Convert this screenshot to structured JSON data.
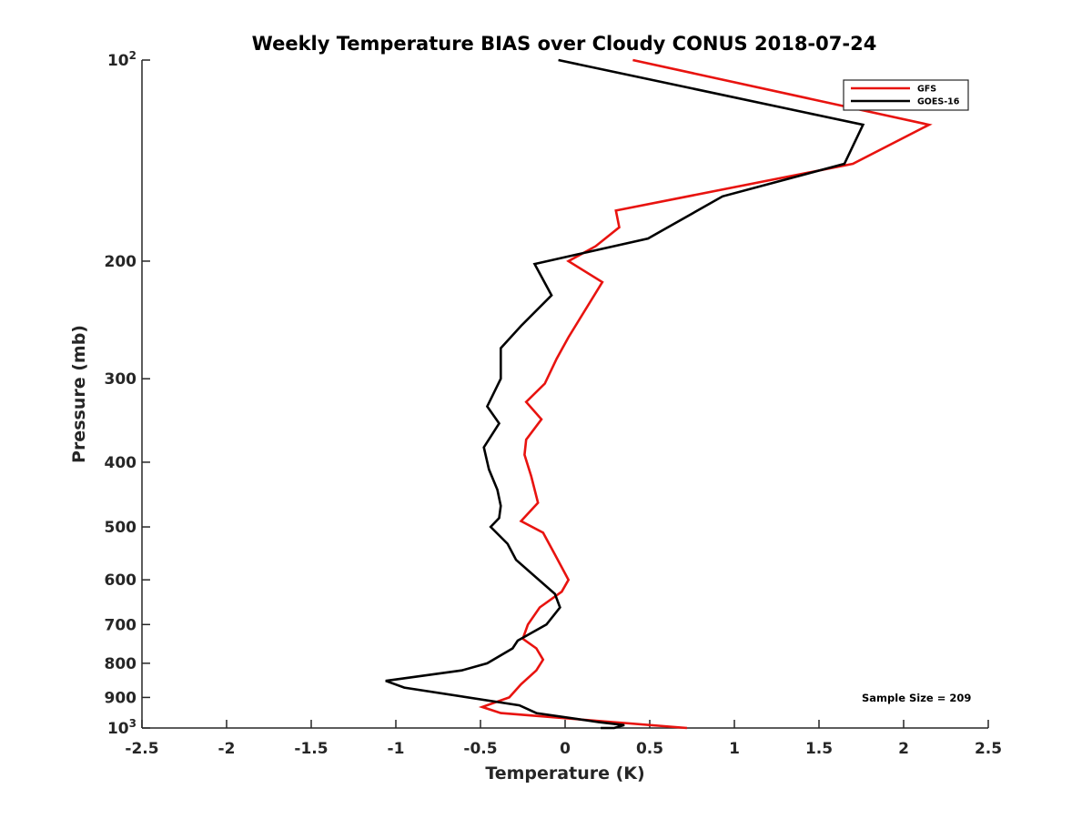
{
  "chart_data": {
    "type": "line",
    "title": "Weekly Temperature BIAS over Cloudy CONUS 2018-07-24",
    "xlabel": "Temperature (K)",
    "ylabel": "Pressure (mb)",
    "xlim": [
      -2.5,
      2.5
    ],
    "ylim": [
      100,
      1000
    ],
    "y_scale": "log",
    "y_reversed": true,
    "grid": false,
    "legend_position": "top-right",
    "x_ticks": [
      -2.5,
      -2,
      -1.5,
      -1,
      -0.5,
      0,
      0.5,
      1,
      1.5,
      2,
      2.5
    ],
    "x_tick_labels": [
      "-2.5",
      "-2",
      "-1.5",
      "-1",
      "-0.5",
      "0",
      "0.5",
      "1",
      "1.5",
      "2",
      "2.5"
    ],
    "y_ticks": [
      {
        "value": 100,
        "base": "10",
        "exp": "2"
      },
      {
        "value": 200,
        "label": "200"
      },
      {
        "value": 300,
        "label": "300"
      },
      {
        "value": 400,
        "label": "400"
      },
      {
        "value": 500,
        "label": "500"
      },
      {
        "value": 600,
        "label": "600"
      },
      {
        "value": 700,
        "label": "700"
      },
      {
        "value": 800,
        "label": "800"
      },
      {
        "value": 900,
        "label": "900"
      },
      {
        "value": 1000,
        "base": "10",
        "exp": "3"
      }
    ],
    "annotation": "Sample Size = 209",
    "series": [
      {
        "name": "GFS",
        "color": "#e8130f",
        "points": [
          [
            0.4,
            100
          ],
          [
            2.15,
            125
          ],
          [
            1.7,
            143
          ],
          [
            0.3,
            168
          ],
          [
            0.32,
            178
          ],
          [
            0.18,
            190
          ],
          [
            0.02,
            200
          ],
          [
            0.22,
            215
          ],
          [
            0.02,
            260
          ],
          [
            -0.05,
            280
          ],
          [
            -0.12,
            305
          ],
          [
            -0.23,
            325
          ],
          [
            -0.14,
            345
          ],
          [
            -0.23,
            370
          ],
          [
            -0.24,
            390
          ],
          [
            -0.2,
            420
          ],
          [
            -0.16,
            460
          ],
          [
            -0.26,
            490
          ],
          [
            -0.13,
            510
          ],
          [
            -0.06,
            550
          ],
          [
            0.02,
            600
          ],
          [
            -0.02,
            625
          ],
          [
            -0.15,
            660
          ],
          [
            -0.22,
            700
          ],
          [
            -0.25,
            735
          ],
          [
            -0.17,
            760
          ],
          [
            -0.13,
            790
          ],
          [
            -0.17,
            820
          ],
          [
            -0.26,
            860
          ],
          [
            -0.33,
            900
          ],
          [
            -0.49,
            930
          ],
          [
            -0.38,
            950
          ],
          [
            0.72,
            1000
          ]
        ]
      },
      {
        "name": "GOES-16",
        "color": "#000000",
        "points": [
          [
            -0.04,
            100
          ],
          [
            1.76,
            125
          ],
          [
            1.65,
            143
          ],
          [
            0.93,
            160
          ],
          [
            0.49,
            185
          ],
          [
            -0.18,
            202
          ],
          [
            -0.08,
            225
          ],
          [
            -0.26,
            250
          ],
          [
            -0.38,
            270
          ],
          [
            -0.38,
            300
          ],
          [
            -0.46,
            330
          ],
          [
            -0.39,
            350
          ],
          [
            -0.48,
            380
          ],
          [
            -0.45,
            410
          ],
          [
            -0.4,
            440
          ],
          [
            -0.38,
            465
          ],
          [
            -0.39,
            485
          ],
          [
            -0.44,
            500
          ],
          [
            -0.34,
            530
          ],
          [
            -0.29,
            560
          ],
          [
            -0.06,
            630
          ],
          [
            -0.03,
            660
          ],
          [
            -0.11,
            700
          ],
          [
            -0.28,
            740
          ],
          [
            -0.31,
            760
          ],
          [
            -0.46,
            800
          ],
          [
            -0.61,
            820
          ],
          [
            -1.06,
            850
          ],
          [
            -0.95,
            870
          ],
          [
            -0.27,
            925
          ],
          [
            -0.17,
            950
          ],
          [
            0.2,
            980
          ],
          [
            0.35,
            990
          ],
          [
            0.29,
            1000
          ],
          [
            0.21,
            1000
          ]
        ]
      }
    ]
  }
}
